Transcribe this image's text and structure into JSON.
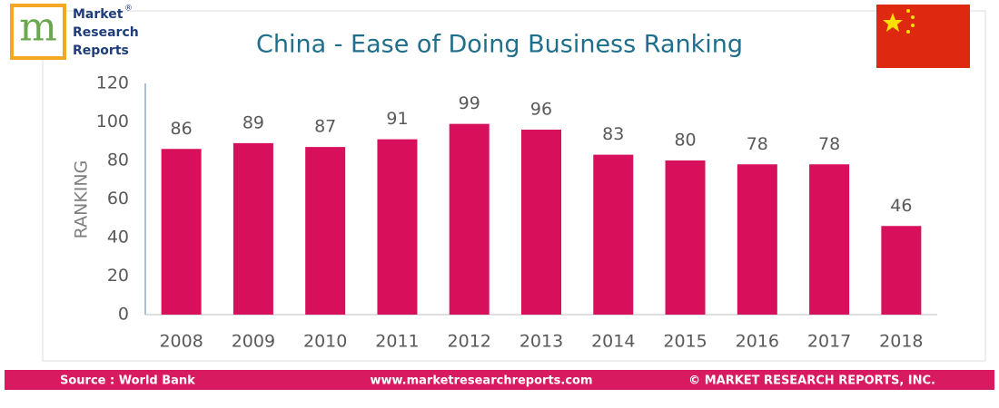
{
  "logo": {
    "mark": "m",
    "line1": "Market",
    "registered": "®",
    "line2": "Research",
    "line3": "Reports"
  },
  "chart_data": {
    "type": "bar",
    "title": "China - Ease of Doing Business Ranking",
    "y_label": "RANKING",
    "categories": [
      "2008",
      "2009",
      "2010",
      "2011",
      "2012",
      "2013",
      "2014",
      "2015",
      "2016",
      "2017",
      "2018"
    ],
    "values": [
      86,
      89,
      87,
      91,
      99,
      96,
      83,
      80,
      78,
      78,
      46
    ],
    "color": "#d80f5a",
    "ylim": [
      0,
      120
    ],
    "yticks": [
      0,
      20,
      40,
      60,
      80,
      100,
      120
    ],
    "grid": false
  },
  "footer": {
    "source": "Source : World Bank",
    "url": "www.marketresearchreports.com",
    "copyright": "© MARKET RESEARCH REPORTS, INC."
  }
}
